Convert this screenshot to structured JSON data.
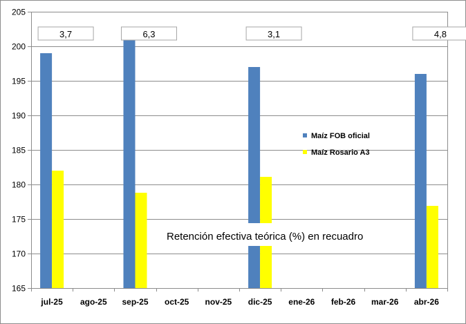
{
  "chart_data": {
    "type": "bar",
    "categories": [
      "jul-25",
      "ago-25",
      "sep-25",
      "oct-25",
      "nov-25",
      "dic-25",
      "ene-26",
      "feb-26",
      "mar-26",
      "abr-26"
    ],
    "series": [
      {
        "name": "Maíz FOB oficial",
        "color": "#4f81bd",
        "values": [
          199,
          null,
          201,
          null,
          null,
          197,
          null,
          null,
          null,
          196
        ]
      },
      {
        "name": "Maíz Rosario  A3",
        "color": "#ffff00",
        "values": [
          182,
          null,
          178.8,
          null,
          null,
          181.1,
          null,
          null,
          null,
          176.9
        ]
      }
    ],
    "ylim": [
      165,
      205
    ],
    "yticks": [
      165,
      170,
      175,
      180,
      185,
      190,
      195,
      200,
      205
    ],
    "grid": true,
    "legend": "right",
    "callouts": [
      {
        "category": "jul-25",
        "label": "3,7"
      },
      {
        "category": "sep-25",
        "label": "6,3"
      },
      {
        "category": "dic-25",
        "label": "3,1"
      },
      {
        "category": "abr-26",
        "label": "4,8"
      }
    ],
    "annotation": "Retención efectiva teórica (%) en recuadro"
  }
}
